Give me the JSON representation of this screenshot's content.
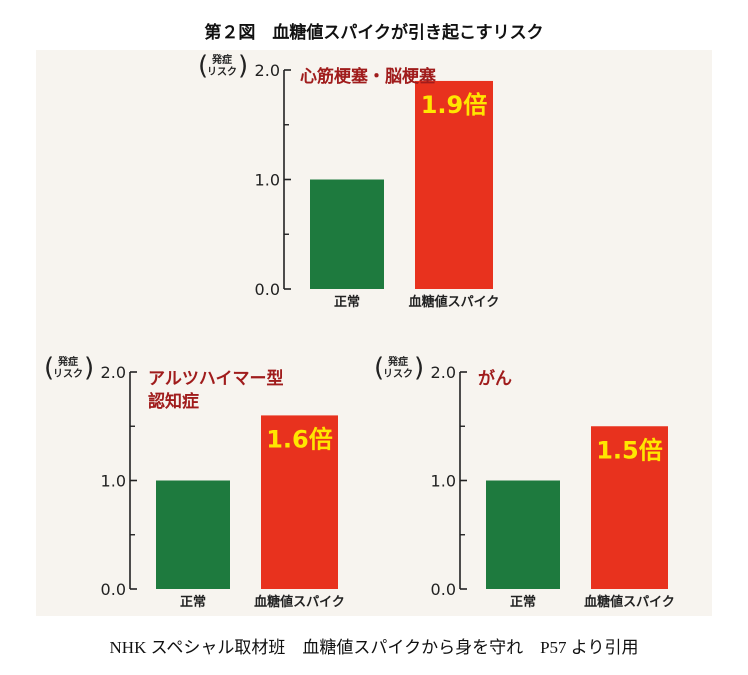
{
  "figure_title": "第２図　血糖値スパイクが引き起こすリスク",
  "source_note": "NHK スペシャル取材班　血糖値スパイクから身を守れ　P57 より引用",
  "colors": {
    "normal": "#1e7a3e",
    "spike": "#e8321e",
    "title_red": "#a01c1c",
    "multiplier": "#ffe600",
    "axis": "#222222"
  },
  "y_axis_label_line1": "発症",
  "y_axis_label_line2": "リスク",
  "chart_data": [
    {
      "type": "bar",
      "title": "心筋梗塞・脳梗塞",
      "categories": [
        "正常",
        "血糖値スパイク"
      ],
      "values": [
        1.0,
        1.9
      ],
      "annotation": "1.9倍",
      "yticks": [
        "0.0",
        "1.0",
        "2.0"
      ],
      "ylim": [
        0,
        2.0
      ],
      "ylabel": "（発症リスク）"
    },
    {
      "type": "bar",
      "title": "アルツハイマー型認知症",
      "title_lines": [
        "アルツハイマー型",
        "認知症"
      ],
      "categories": [
        "正常",
        "血糖値スパイク"
      ],
      "values": [
        1.0,
        1.6
      ],
      "annotation": "1.6倍",
      "yticks": [
        "0.0",
        "1.0",
        "2.0"
      ],
      "ylim": [
        0,
        2.0
      ],
      "ylabel": "（発症リスク）"
    },
    {
      "type": "bar",
      "title": "がん",
      "categories": [
        "正常",
        "血糖値スパイク"
      ],
      "values": [
        1.0,
        1.5
      ],
      "annotation": "1.5倍",
      "yticks": [
        "0.0",
        "1.0",
        "2.0"
      ],
      "ylim": [
        0,
        2.0
      ],
      "ylabel": "（発症リスク）"
    }
  ]
}
